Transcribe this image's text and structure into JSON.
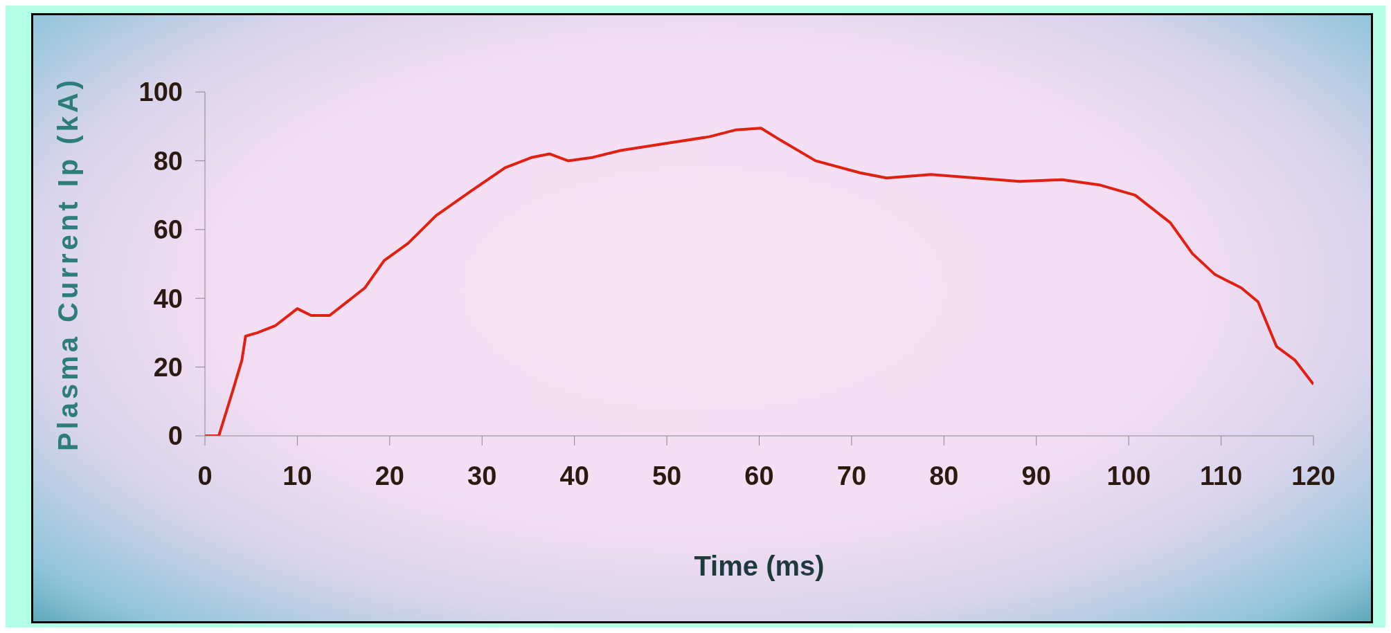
{
  "chart_data": {
    "type": "line",
    "xlabel": "Time (ms)",
    "ylabel": "Plasma Current Ip (kA)",
    "x": [
      0,
      1.5,
      3,
      4,
      4.4,
      5.7,
      7.6,
      10,
      11.5,
      13.5,
      15.4,
      17.3,
      19.4,
      22,
      25,
      28.7,
      32.5,
      35.4,
      37.3,
      39.3,
      42,
      45,
      49.8,
      54.6,
      57.5,
      60.2,
      62.3,
      66.1,
      70.9,
      73.8,
      78.6,
      83.4,
      88.2,
      92.8,
      96.8,
      100.7,
      104.5,
      106.9,
      109.3,
      112.2,
      114,
      116,
      118,
      120
    ],
    "series": [
      {
        "color": "#e02010",
        "values": [
          0,
          0,
          13,
          22,
          29,
          30,
          32,
          37,
          35,
          35,
          39,
          43,
          51,
          56,
          64,
          71,
          78,
          81,
          82,
          80,
          81,
          83,
          85,
          87,
          89,
          89.5,
          86,
          80,
          76.5,
          75,
          76,
          75,
          74,
          74.5,
          73,
          70,
          62,
          53,
          47,
          43,
          39,
          26,
          22,
          15
        ]
      }
    ],
    "xlim": [
      0,
      120
    ],
    "xticks": [
      0,
      10,
      20,
      30,
      40,
      50,
      60,
      70,
      80,
      90,
      100,
      110,
      120
    ],
    "ylim": [
      0,
      100
    ],
    "yticks": [
      0,
      20,
      40,
      60,
      80,
      100
    ],
    "grid": false,
    "legend": false,
    "marker": "none",
    "line_style": "solid"
  }
}
